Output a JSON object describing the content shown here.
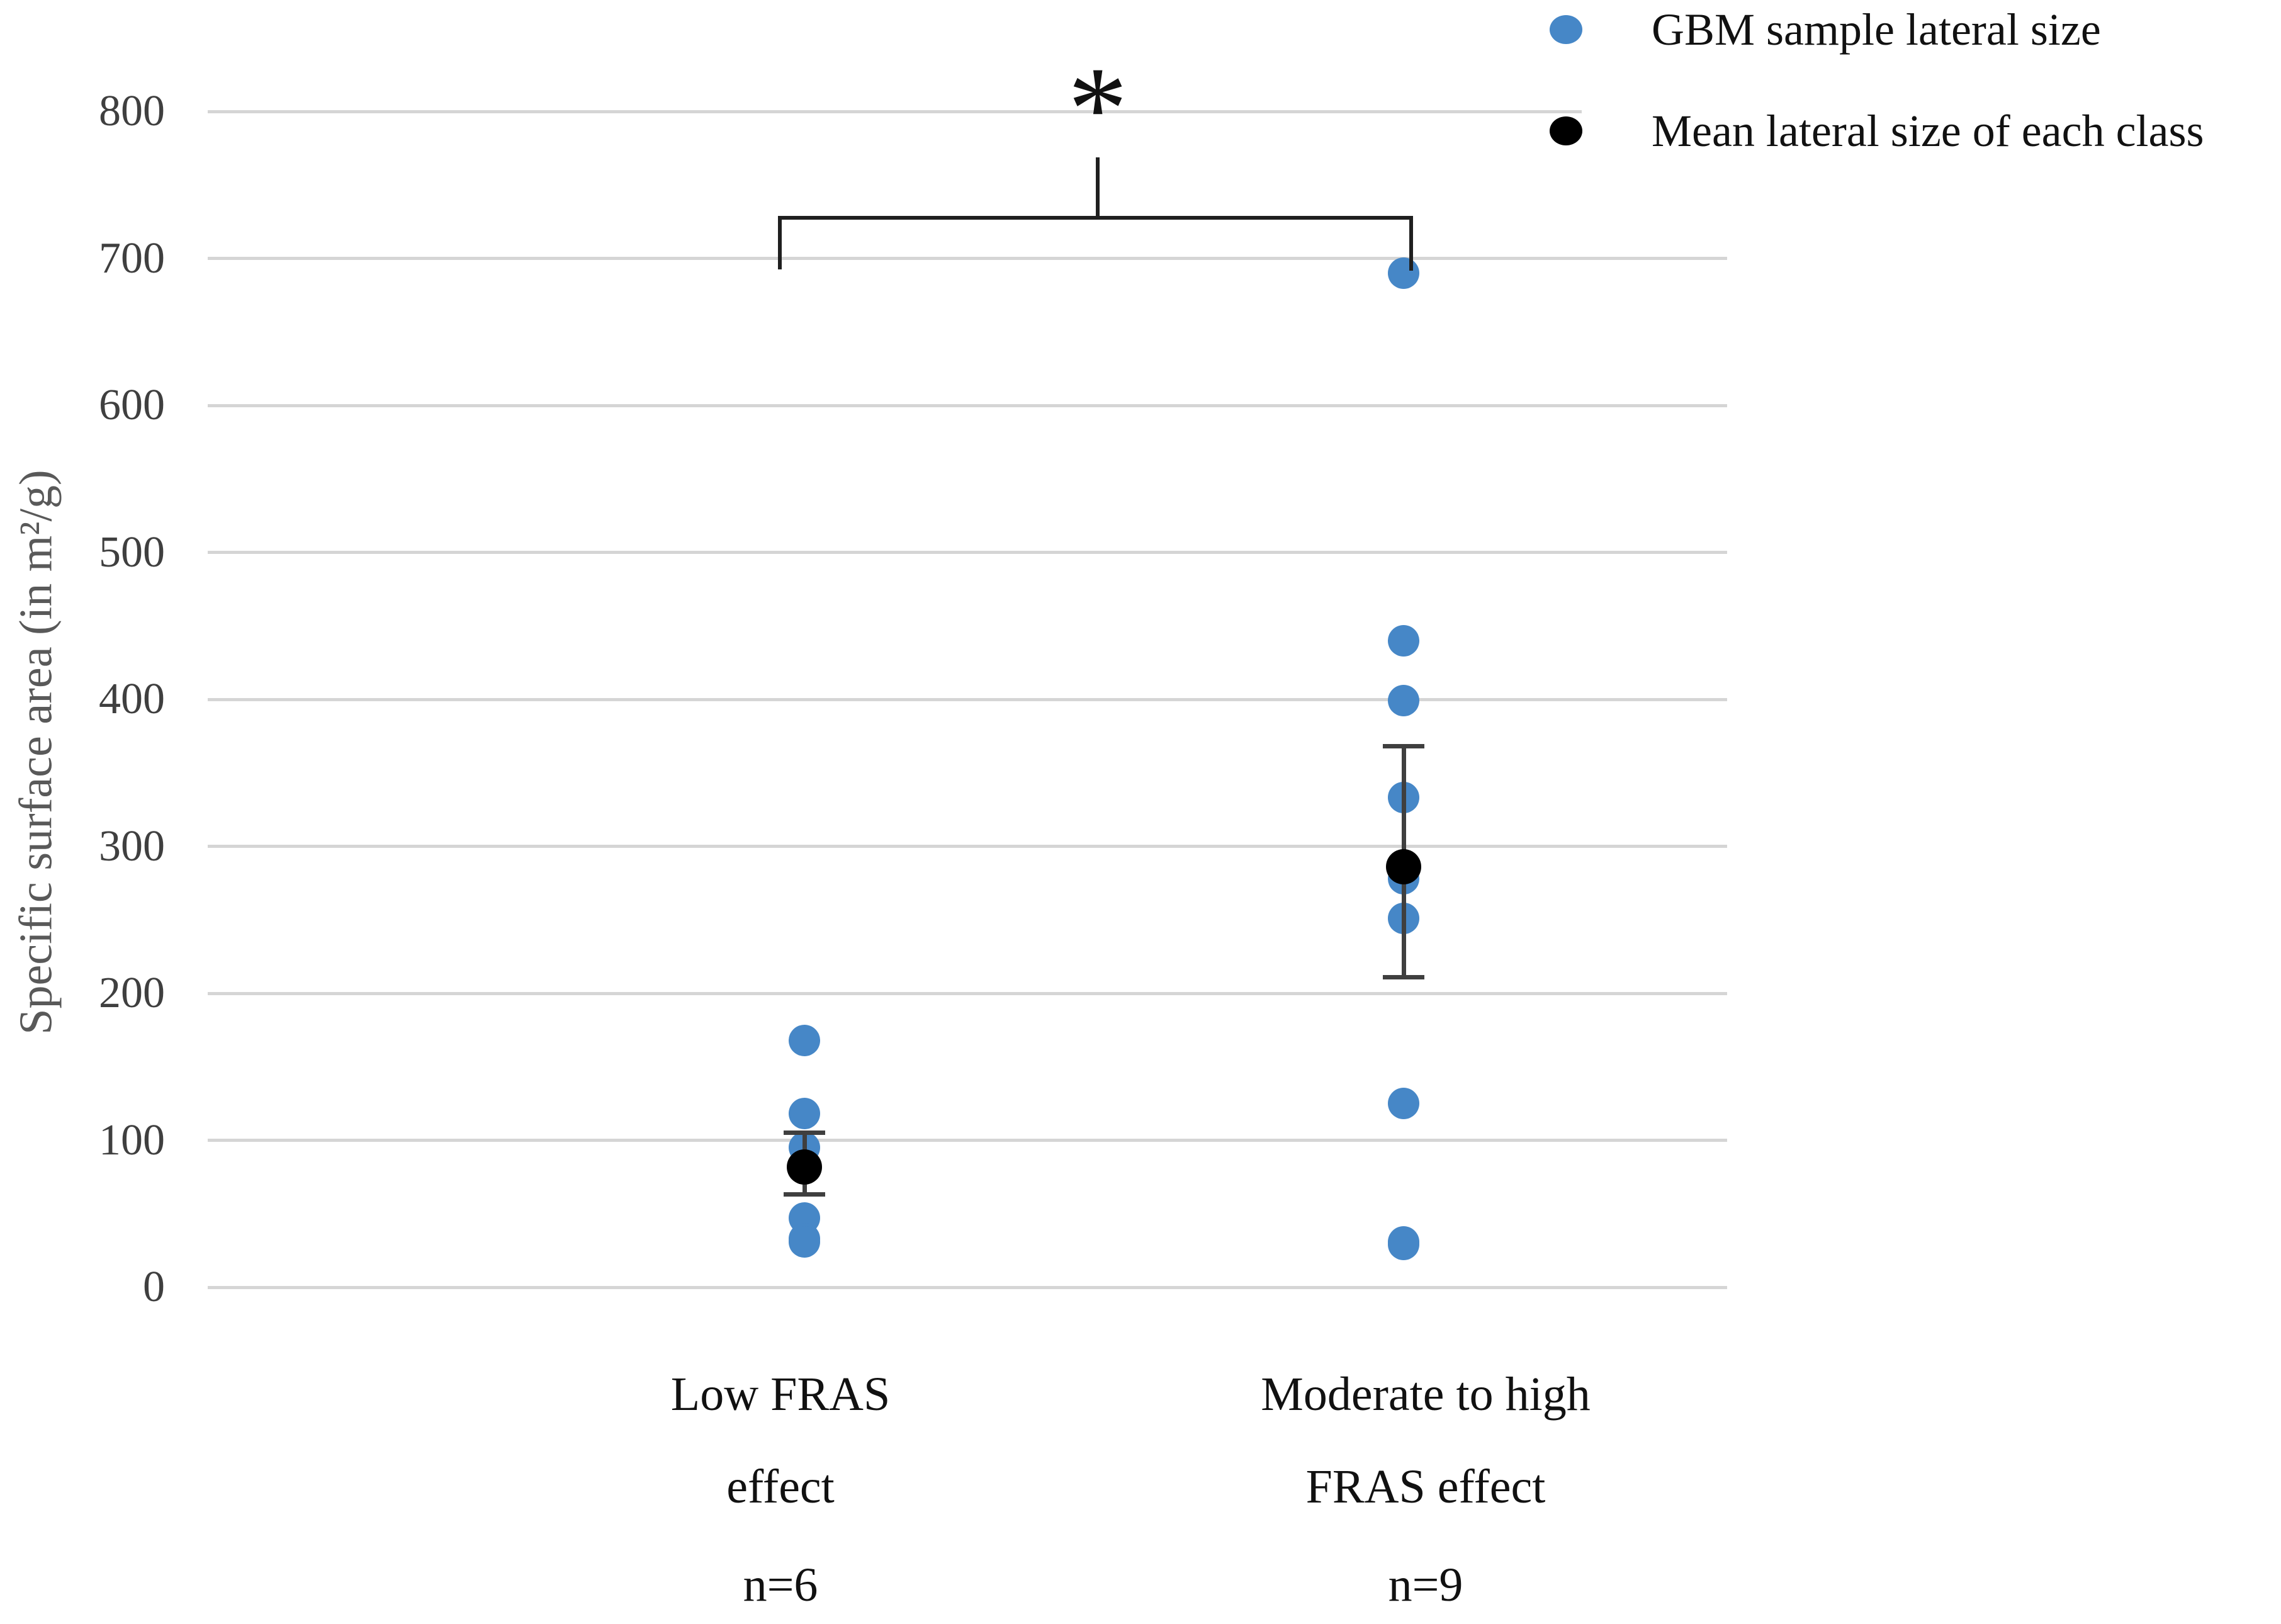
{
  "chart_data": {
    "type": "scatter",
    "title": "",
    "xlabel": "",
    "ylabel": "Specific surface area (in m²/g)",
    "grid": true,
    "legend_position": "top-right",
    "y_axis": {
      "min": 0,
      "max": 800,
      "step": 100,
      "tick_labels": [
        "0",
        "100",
        "200",
        "300",
        "400",
        "500",
        "600",
        "700",
        "800"
      ]
    },
    "groups": [
      {
        "label_lines": [
          "Low FRAS",
          "effect",
          "n=6"
        ],
        "n": 6,
        "points": [
          168,
          118,
          95,
          47,
          33,
          31
        ],
        "mean": 82,
        "error_low": 63,
        "error_high": 105
      },
      {
        "label_lines": [
          "Moderate to high",
          "FRAS effect",
          "n=9"
        ],
        "n": 9,
        "points": [
          690,
          440,
          399,
          333,
          278,
          251,
          125,
          31,
          29
        ],
        "mean": 286,
        "error_low": 211,
        "error_high": 368
      }
    ],
    "significance": {
      "symbol": "*",
      "between": [
        0,
        1
      ]
    },
    "legend": [
      {
        "label": "GBM sample lateral size",
        "marker": "circle",
        "color": "#4687C7"
      },
      {
        "label": "Mean lateral size of each class",
        "marker": "circle",
        "color": "#000000"
      }
    ],
    "colors": {
      "sample_point": "#4687C7",
      "mean_point": "#000000",
      "gridline": "#D5D5D5",
      "tick_text": "#3F3F3F",
      "axis_title": "#595959",
      "category_text": "#111111",
      "bracket": "#1F1F1F",
      "error_bar": "#3F3F3F"
    }
  }
}
